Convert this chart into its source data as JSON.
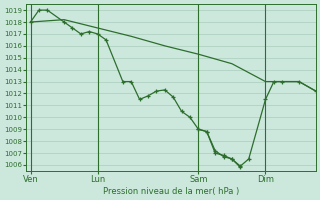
{
  "background_color": "#cce8dc",
  "grid_color": "#aaccbb",
  "line_color": "#2d6e2d",
  "ylabel_text": "Pression niveau de la mer( hPa )",
  "ylim": [
    1005.5,
    1019.5
  ],
  "yticks": [
    1006,
    1007,
    1008,
    1009,
    1010,
    1011,
    1012,
    1013,
    1014,
    1015,
    1016,
    1017,
    1018,
    1019
  ],
  "xtick_labels": [
    "Ven",
    "Lun",
    "Sam",
    "Dim"
  ],
  "xtick_positions": [
    0,
    8,
    20,
    28
  ],
  "vline_positions": [
    0,
    8,
    20,
    28
  ],
  "xlim": [
    -0.5,
    34
  ],
  "line_a_x": [
    0,
    4,
    8,
    12,
    16,
    20,
    24,
    28,
    32,
    34
  ],
  "line_a_y": [
    1018.0,
    1018.2,
    1017.5,
    1016.8,
    1016.0,
    1015.3,
    1014.5,
    1013.0,
    1013.0,
    1012.2
  ],
  "line_b_x": [
    0,
    1,
    2,
    4,
    5,
    6,
    7,
    8,
    9,
    11,
    12,
    13,
    14,
    15,
    16,
    17,
    18,
    19,
    20,
    21,
    22,
    23,
    24,
    25
  ],
  "line_b_y": [
    1018.0,
    1019.0,
    1019.0,
    1018.0,
    1017.5,
    1017.0,
    1017.2,
    1017.0,
    1016.5,
    1013.0,
    1013.0,
    1011.5,
    1011.8,
    1012.2,
    1012.3,
    1011.7,
    1010.5,
    1010.0,
    1009.0,
    1008.8,
    1007.0,
    1006.8,
    1006.5,
    1005.8
  ],
  "line_c_x": [
    20,
    21,
    22,
    23,
    24,
    25,
    26,
    28,
    29,
    30,
    32,
    34
  ],
  "line_c_y": [
    1009.0,
    1008.8,
    1007.2,
    1006.7,
    1006.5,
    1005.9,
    1006.5,
    1011.5,
    1013.0,
    1013.0,
    1013.0,
    1012.2
  ]
}
